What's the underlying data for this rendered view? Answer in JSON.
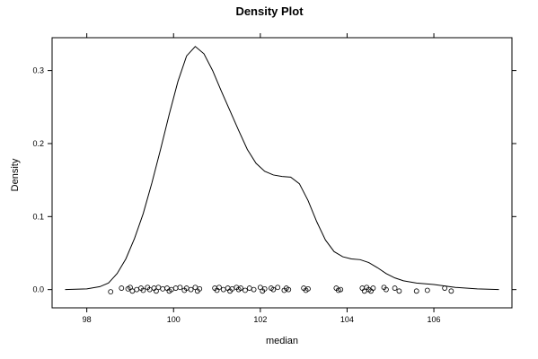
{
  "chart_data": {
    "type": "line",
    "title": "Density Plot",
    "xlabel": "median",
    "ylabel": "Density",
    "xlim": [
      97.2,
      107.8
    ],
    "ylim": [
      -0.025,
      0.345
    ],
    "x_ticks": [
      98,
      100,
      102,
      104,
      106
    ],
    "x_tick_labels": [
      "98",
      "100",
      "102",
      "104",
      "106"
    ],
    "y_ticks": [
      0.0,
      0.1,
      0.2,
      0.3
    ],
    "y_tick_labels": [
      "0.0",
      "0.1",
      "0.2",
      "0.3"
    ],
    "grid": false,
    "series": [
      {
        "x": [
          97.5,
          98.0,
          98.3,
          98.5,
          98.7,
          98.9,
          99.1,
          99.3,
          99.5,
          99.7,
          99.9,
          100.1,
          100.3,
          100.5,
          100.7,
          100.9,
          101.1,
          101.3,
          101.5,
          101.7,
          101.9,
          102.1,
          102.3,
          102.5,
          102.7,
          102.9,
          103.1,
          103.3,
          103.5,
          103.7,
          103.9,
          104.1,
          104.3,
          104.5,
          104.7,
          104.9,
          105.1,
          105.3,
          105.6,
          106.0,
          106.5,
          107.0,
          107.5
        ],
        "y": [
          0.0,
          0.001,
          0.004,
          0.009,
          0.022,
          0.042,
          0.07,
          0.104,
          0.146,
          0.192,
          0.24,
          0.285,
          0.32,
          0.333,
          0.323,
          0.3,
          0.272,
          0.245,
          0.218,
          0.192,
          0.173,
          0.162,
          0.157,
          0.155,
          0.154,
          0.145,
          0.122,
          0.093,
          0.068,
          0.052,
          0.045,
          0.042,
          0.041,
          0.037,
          0.03,
          0.022,
          0.016,
          0.012,
          0.009,
          0.007,
          0.003,
          0.001,
          0.0
        ]
      }
    ],
    "rug_points": [
      [
        98.55,
        -0.003
      ],
      [
        98.8,
        0.002
      ],
      [
        98.95,
        0.001
      ],
      [
        99.0,
        0.003
      ],
      [
        99.05,
        -0.002
      ],
      [
        99.15,
        0.0
      ],
      [
        99.25,
        0.002
      ],
      [
        99.3,
        -0.001
      ],
      [
        99.4,
        0.003
      ],
      [
        99.45,
        0.0
      ],
      [
        99.55,
        0.002
      ],
      [
        99.6,
        -0.002
      ],
      [
        99.65,
        0.003
      ],
      [
        99.75,
        0.001
      ],
      [
        99.85,
        0.002
      ],
      [
        99.9,
        -0.002
      ],
      [
        99.95,
        0.0
      ],
      [
        100.05,
        0.002
      ],
      [
        100.15,
        0.003
      ],
      [
        100.25,
        -0.001
      ],
      [
        100.3,
        0.002
      ],
      [
        100.4,
        0.0
      ],
      [
        100.5,
        0.003
      ],
      [
        100.55,
        -0.002
      ],
      [
        100.6,
        0.001
      ],
      [
        100.95,
        0.002
      ],
      [
        101.0,
        -0.001
      ],
      [
        101.05,
        0.003
      ],
      [
        101.15,
        0.0
      ],
      [
        101.25,
        0.002
      ],
      [
        101.3,
        -0.002
      ],
      [
        101.35,
        0.001
      ],
      [
        101.45,
        0.003
      ],
      [
        101.5,
        0.0
      ],
      [
        101.55,
        0.002
      ],
      [
        101.65,
        -0.001
      ],
      [
        101.75,
        0.002
      ],
      [
        101.85,
        0.0
      ],
      [
        102.0,
        0.003
      ],
      [
        102.05,
        -0.002
      ],
      [
        102.1,
        0.001
      ],
      [
        102.25,
        0.002
      ],
      [
        102.3,
        0.0
      ],
      [
        102.4,
        0.003
      ],
      [
        102.55,
        -0.001
      ],
      [
        102.6,
        0.002
      ],
      [
        102.65,
        0.0
      ],
      [
        103.0,
        0.002
      ],
      [
        103.05,
        -0.001
      ],
      [
        103.1,
        0.001
      ],
      [
        103.75,
        0.002
      ],
      [
        103.8,
        -0.001
      ],
      [
        103.85,
        0.0
      ],
      [
        104.35,
        0.002
      ],
      [
        104.4,
        -0.002
      ],
      [
        104.45,
        0.003
      ],
      [
        104.5,
        0.0
      ],
      [
        104.55,
        -0.002
      ],
      [
        104.6,
        0.002
      ],
      [
        104.85,
        0.003
      ],
      [
        104.9,
        0.0
      ],
      [
        105.1,
        0.002
      ],
      [
        105.2,
        -0.002
      ],
      [
        105.6,
        -0.002
      ],
      [
        105.85,
        -0.001
      ],
      [
        106.25,
        0.002
      ],
      [
        106.4,
        -0.002
      ]
    ]
  }
}
